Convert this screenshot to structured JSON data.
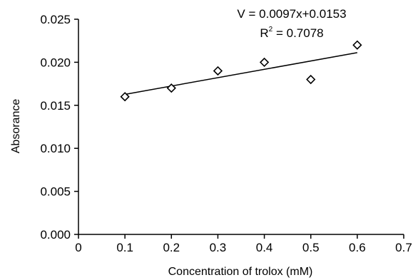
{
  "chart_data": {
    "type": "scatter",
    "xlabel": "Concentration of trolox (mM)",
    "ylabel": "Absorance",
    "xlim": [
      0,
      0.7
    ],
    "ylim": [
      0,
      0.025
    ],
    "x_ticks": [
      "0",
      "0.1",
      "0.2",
      "0.3",
      "0.4",
      "0.5",
      "0.6",
      "0.7"
    ],
    "y_ticks": [
      "0.000",
      "0.005",
      "0.010",
      "0.015",
      "0.020",
      "0.025"
    ],
    "points": [
      {
        "x": 0.1,
        "y": 0.016
      },
      {
        "x": 0.2,
        "y": 0.017
      },
      {
        "x": 0.3,
        "y": 0.019
      },
      {
        "x": 0.4,
        "y": 0.02
      },
      {
        "x": 0.5,
        "y": 0.018
      },
      {
        "x": 0.6,
        "y": 0.022
      }
    ],
    "trendline": {
      "slope": 0.0097,
      "intercept": 0.0153,
      "x_from": 0.1,
      "x_to": 0.6
    },
    "annotations": {
      "equation": "V = 0.0097x+0.0153",
      "r2_prefix": "R",
      "r2_superscript": "2",
      "r2_value": " = 0.7078"
    },
    "marker": "open-diamond",
    "grid": false,
    "legend": "none"
  }
}
